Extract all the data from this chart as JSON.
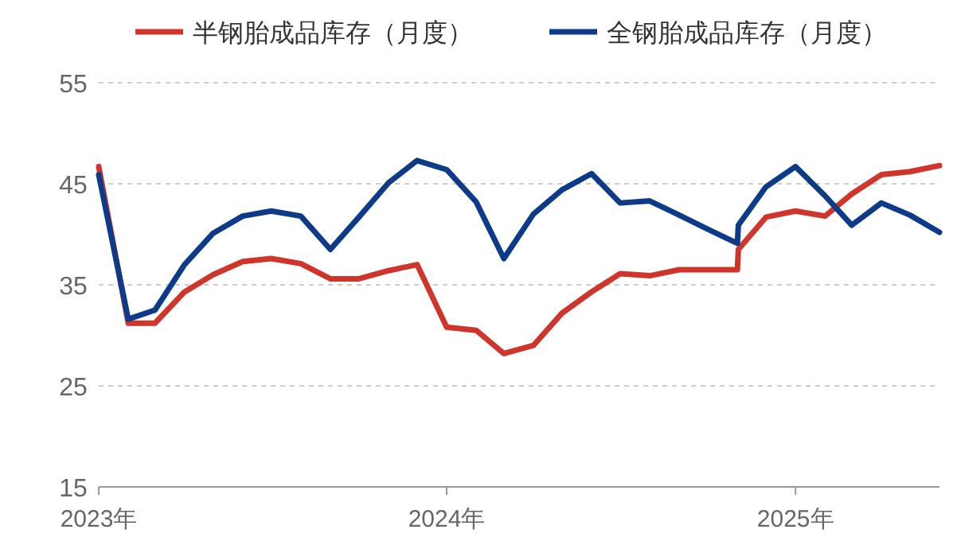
{
  "chart_data": {
    "type": "line",
    "x": [
      "2023-01",
      "2023-02",
      "2023-03",
      "2023-04",
      "2023-05",
      "2023-06",
      "2023-07",
      "2023-08",
      "2023-09",
      "2023-10",
      "2023-11",
      "2023-12",
      "2024-01",
      "2024-02",
      "2024-03",
      "2024-04",
      "2024-05",
      "2024-06",
      "2024-07",
      "2024-08",
      "2024-09",
      "2024-10",
      "2024-11-01",
      "2024-11-02",
      "2024-12",
      "2025-01",
      "2025-02",
      "2025-03",
      "2025-04",
      "2025-05",
      "2025-06"
    ],
    "series": [
      {
        "name": "半钢胎成品库存（月度）",
        "color": "#d0352b",
        "values": [
          46.7,
          31.2,
          31.2,
          34.3,
          36.0,
          37.3,
          37.6,
          37.1,
          35.6,
          35.6,
          36.4,
          37.0,
          30.8,
          30.5,
          28.2,
          29.0,
          32.2,
          34.3,
          36.1,
          35.9,
          36.5,
          36.5,
          36.5,
          38.5,
          41.7,
          42.3,
          41.8,
          44.0,
          45.9,
          46.2,
          46.8
        ]
      },
      {
        "name": "全钢胎成品库存（月度）",
        "color": "#0d3b8a",
        "values": [
          45.9,
          31.6,
          32.5,
          37.0,
          40.1,
          41.8,
          42.3,
          41.8,
          38.5,
          41.7,
          45.1,
          47.3,
          46.4,
          43.2,
          37.6,
          42.0,
          44.4,
          46.0,
          43.1,
          43.3,
          41.9,
          40.5,
          39.1,
          40.9,
          44.7,
          46.7,
          43.8,
          40.9,
          43.1,
          41.9,
          40.2
        ]
      }
    ],
    "xlim": [
      "2023-01",
      "2025-06"
    ],
    "xticks": [
      {
        "value": "2023-01",
        "label": "2023年"
      },
      {
        "value": "2024-01",
        "label": "2024年"
      },
      {
        "value": "2025-01",
        "label": "2025年"
      }
    ],
    "ylim": [
      15,
      55
    ],
    "yticks": [
      15,
      25,
      35,
      45,
      55
    ],
    "grid": "y",
    "legend": "top",
    "marker": "none",
    "line_style": "solid"
  }
}
